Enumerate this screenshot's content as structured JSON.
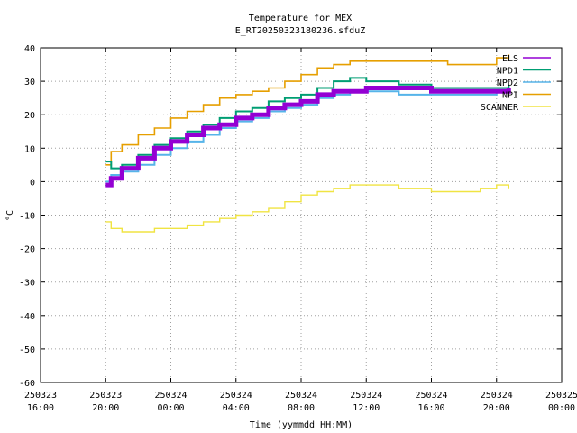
{
  "chart_data": {
    "type": "line",
    "title": "Temperature for MEX",
    "subtitle": "E_RT20250323180236.sfduZ",
    "xlabel": "Time (yymmdd HH:MM)",
    "ylabel": "°C",
    "xlim": [
      "2025-03-23 16:00",
      "2025-03-25 00:00"
    ],
    "ylim": [
      -60,
      40
    ],
    "grid": true,
    "legend_position": "top-right",
    "y_ticks": [
      "-60",
      "-50",
      "-40",
      "-30",
      "-20",
      "-10",
      "0",
      "10",
      "20",
      "30",
      "40"
    ],
    "x_ticks": [
      {
        "date": "250323",
        "time": "16:00"
      },
      {
        "date": "250323",
        "time": "20:00"
      },
      {
        "date": "250324",
        "time": "00:00"
      },
      {
        "date": "250324",
        "time": "04:00"
      },
      {
        "date": "250324",
        "time": "08:00"
      },
      {
        "date": "250324",
        "time": "12:00"
      },
      {
        "date": "250324",
        "time": "16:00"
      },
      {
        "date": "250324",
        "time": "20:00"
      },
      {
        "date": "250325",
        "time": "00:00"
      }
    ],
    "series": [
      {
        "name": "ELS",
        "color": "#9400d3",
        "x": [
          "2025-03-23 20:00",
          "2025-03-23 20:20",
          "2025-03-23 21:00",
          "2025-03-23 22:00",
          "2025-03-23 23:00",
          "2025-03-24 00:00",
          "2025-03-24 01:00",
          "2025-03-24 02:00",
          "2025-03-24 03:00",
          "2025-03-24 04:00",
          "2025-03-24 05:00",
          "2025-03-24 06:00",
          "2025-03-24 07:00",
          "2025-03-24 08:00",
          "2025-03-24 09:00",
          "2025-03-24 10:00",
          "2025-03-24 11:00",
          "2025-03-24 12:00",
          "2025-03-24 13:00",
          "2025-03-24 14:00",
          "2025-03-24 15:00",
          "2025-03-24 16:00",
          "2025-03-24 17:00",
          "2025-03-24 18:00",
          "2025-03-24 19:00",
          "2025-03-24 20:00",
          "2025-03-24 20:45"
        ],
        "y": [
          -1,
          1,
          4,
          7,
          10,
          12,
          14,
          16,
          17,
          19,
          20,
          22,
          23,
          24,
          26,
          27,
          27,
          28,
          28,
          28,
          28,
          27,
          27,
          27,
          27,
          27,
          28
        ]
      },
      {
        "name": "NPD1",
        "color": "#009e73",
        "x": [
          "2025-03-23 20:00",
          "2025-03-23 20:20",
          "2025-03-23 21:00",
          "2025-03-23 22:00",
          "2025-03-23 23:00",
          "2025-03-24 00:00",
          "2025-03-24 01:00",
          "2025-03-24 02:00",
          "2025-03-24 03:00",
          "2025-03-24 04:00",
          "2025-03-24 05:00",
          "2025-03-24 06:00",
          "2025-03-24 07:00",
          "2025-03-24 08:00",
          "2025-03-24 09:00",
          "2025-03-24 10:00",
          "2025-03-24 11:00",
          "2025-03-24 12:00",
          "2025-03-24 13:00",
          "2025-03-24 14:00",
          "2025-03-24 15:00",
          "2025-03-24 16:00",
          "2025-03-24 17:00",
          "2025-03-24 18:00",
          "2025-03-24 19:00",
          "2025-03-24 20:00",
          "2025-03-24 20:45"
        ],
        "y": [
          6,
          4,
          5,
          8,
          11,
          13,
          15,
          17,
          19,
          21,
          22,
          24,
          25,
          26,
          28,
          30,
          31,
          30,
          30,
          29,
          29,
          28,
          28,
          28,
          28,
          28,
          29
        ]
      },
      {
        "name": "NPD2",
        "color": "#56b4e9",
        "x": [
          "2025-03-23 20:00",
          "2025-03-23 20:20",
          "2025-03-23 21:00",
          "2025-03-23 22:00",
          "2025-03-23 23:00",
          "2025-03-24 00:00",
          "2025-03-24 01:00",
          "2025-03-24 02:00",
          "2025-03-24 03:00",
          "2025-03-24 04:00",
          "2025-03-24 05:00",
          "2025-03-24 06:00",
          "2025-03-24 07:00",
          "2025-03-24 08:00",
          "2025-03-24 09:00",
          "2025-03-24 10:00",
          "2025-03-24 11:00",
          "2025-03-24 12:00",
          "2025-03-24 13:00",
          "2025-03-24 14:00",
          "2025-03-24 15:00",
          "2025-03-24 16:00",
          "2025-03-24 17:00",
          "2025-03-24 18:00",
          "2025-03-24 19:00",
          "2025-03-24 20:00",
          "2025-03-24 20:45"
        ],
        "y": [
          0,
          2,
          3,
          5,
          8,
          10,
          12,
          14,
          16,
          18,
          19,
          21,
          22,
          23,
          25,
          26,
          27,
          27,
          27,
          26,
          26,
          26,
          26,
          26,
          26,
          27,
          27
        ]
      },
      {
        "name": "NPI",
        "color": "#e69f00",
        "x": [
          "2025-03-23 20:00",
          "2025-03-23 20:20",
          "2025-03-23 21:00",
          "2025-03-23 22:00",
          "2025-03-23 23:00",
          "2025-03-24 00:00",
          "2025-03-24 01:00",
          "2025-03-24 02:00",
          "2025-03-24 03:00",
          "2025-03-24 04:00",
          "2025-03-24 05:00",
          "2025-03-24 06:00",
          "2025-03-24 07:00",
          "2025-03-24 08:00",
          "2025-03-24 09:00",
          "2025-03-24 10:00",
          "2025-03-24 11:00",
          "2025-03-24 12:00",
          "2025-03-24 13:00",
          "2025-03-24 14:00",
          "2025-03-24 15:00",
          "2025-03-24 16:00",
          "2025-03-24 17:00",
          "2025-03-24 18:00",
          "2025-03-24 19:00",
          "2025-03-24 20:00",
          "2025-03-24 20:45"
        ],
        "y": [
          5,
          9,
          11,
          14,
          16,
          19,
          21,
          23,
          25,
          26,
          27,
          28,
          30,
          32,
          34,
          35,
          36,
          36,
          36,
          36,
          36,
          36,
          35,
          35,
          35,
          37,
          38
        ]
      },
      {
        "name": "SCANNER",
        "color": "#f0e442",
        "x": [
          "2025-03-23 20:00",
          "2025-03-23 20:20",
          "2025-03-23 21:00",
          "2025-03-23 22:00",
          "2025-03-23 23:00",
          "2025-03-24 00:00",
          "2025-03-24 01:00",
          "2025-03-24 02:00",
          "2025-03-24 03:00",
          "2025-03-24 04:00",
          "2025-03-24 05:00",
          "2025-03-24 06:00",
          "2025-03-24 07:00",
          "2025-03-24 08:00",
          "2025-03-24 09:00",
          "2025-03-24 10:00",
          "2025-03-24 11:00",
          "2025-03-24 12:00",
          "2025-03-24 13:00",
          "2025-03-24 14:00",
          "2025-03-24 15:00",
          "2025-03-24 16:00",
          "2025-03-24 17:00",
          "2025-03-24 18:00",
          "2025-03-24 19:00",
          "2025-03-24 20:00",
          "2025-03-24 20:45"
        ],
        "y": [
          -12,
          -14,
          -15,
          -15,
          -14,
          -14,
          -13,
          -12,
          -11,
          -10,
          -9,
          -8,
          -6,
          -4,
          -3,
          -2,
          -1,
          -1,
          -1,
          -2,
          -2,
          -3,
          -3,
          -3,
          -2,
          -1,
          -2
        ]
      }
    ]
  }
}
